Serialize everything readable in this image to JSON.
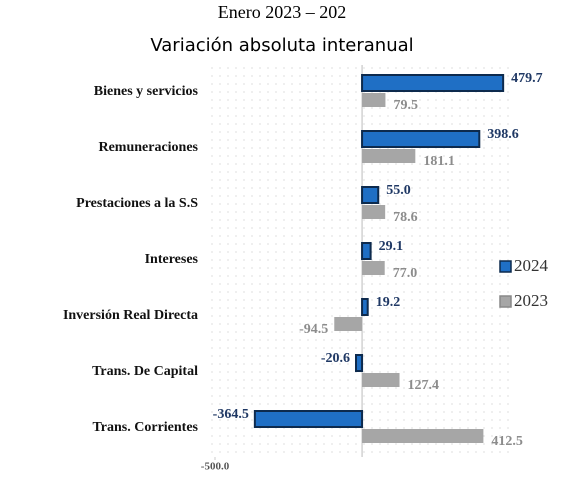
{
  "chart_data": {
    "type": "barh",
    "title": "Enero 2023 – 202",
    "subtitle": "Variación absoluta interanual",
    "categories": [
      "Bienes y servicios",
      "Remuneraciones",
      "Prestaciones a la S.S",
      "Intereses",
      "Inversión Real Directa",
      "Trans. De Capital",
      "Trans. Corrientes"
    ],
    "series": [
      {
        "name": "2024",
        "color": "#1f6fc5",
        "values": [
          479.7,
          398.6,
          55.0,
          29.1,
          19.2,
          -20.6,
          -364.5
        ],
        "value_labels": [
          "479.7",
          "398.6",
          "55.0",
          "29.1",
          "19.2",
          "-20.6",
          "-364.5"
        ]
      },
      {
        "name": "2023",
        "color": "#a6a6a6",
        "values": [
          79.5,
          181.1,
          78.6,
          77.0,
          -94.5,
          127.4,
          412.5
        ],
        "value_labels": [
          "79.5",
          "181.1",
          "78.6",
          "77.0",
          "-94.5",
          "127.4",
          "412.5"
        ]
      }
    ],
    "xlim": [
      -500,
      520
    ],
    "xticks": [
      {
        "value": -500,
        "label": "-500.0"
      }
    ],
    "grid": true,
    "legend": "right"
  }
}
